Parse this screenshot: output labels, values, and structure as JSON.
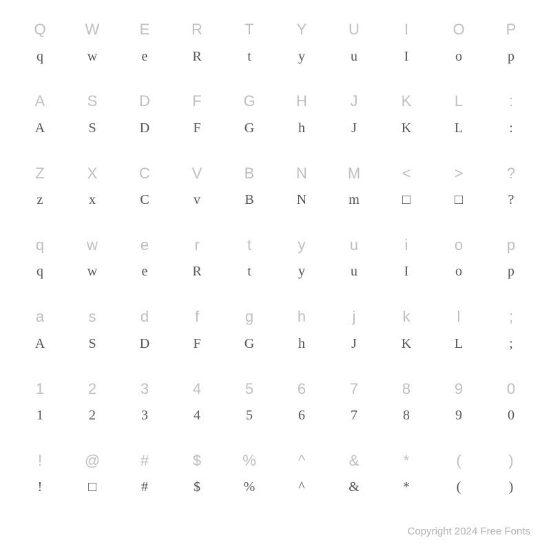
{
  "type": "font-specimen-grid",
  "background_color": "#ffffff",
  "label_color": "#bfbfbf",
  "glyph_color": "#555555",
  "label_fontsize": 22,
  "glyph_fontsize": 20,
  "grid": {
    "columns": 10,
    "rows": 7
  },
  "footer": "Copyright 2024 Free Fonts",
  "rows": [
    [
      {
        "label": "Q",
        "glyph": "q"
      },
      {
        "label": "W",
        "glyph": "w"
      },
      {
        "label": "E",
        "glyph": "e"
      },
      {
        "label": "R",
        "glyph": "R"
      },
      {
        "label": "T",
        "glyph": "t"
      },
      {
        "label": "Y",
        "glyph": "y"
      },
      {
        "label": "U",
        "glyph": "u"
      },
      {
        "label": "I",
        "glyph": "I"
      },
      {
        "label": "O",
        "glyph": "o"
      },
      {
        "label": "P",
        "glyph": "p"
      }
    ],
    [
      {
        "label": "A",
        "glyph": "A"
      },
      {
        "label": "S",
        "glyph": "S"
      },
      {
        "label": "D",
        "glyph": "D"
      },
      {
        "label": "F",
        "glyph": "F"
      },
      {
        "label": "G",
        "glyph": "G"
      },
      {
        "label": "H",
        "glyph": "h"
      },
      {
        "label": "J",
        "glyph": "J"
      },
      {
        "label": "K",
        "glyph": "K"
      },
      {
        "label": "L",
        "glyph": "L"
      },
      {
        "label": ":",
        "glyph": ":"
      }
    ],
    [
      {
        "label": "Z",
        "glyph": "z"
      },
      {
        "label": "X",
        "glyph": "x"
      },
      {
        "label": "C",
        "glyph": "C"
      },
      {
        "label": "V",
        "glyph": "v"
      },
      {
        "label": "B",
        "glyph": "B"
      },
      {
        "label": "N",
        "glyph": "N"
      },
      {
        "label": "M",
        "glyph": "m"
      },
      {
        "label": "<",
        "glyph": "□"
      },
      {
        "label": ">",
        "glyph": "□"
      },
      {
        "label": "?",
        "glyph": "?"
      }
    ],
    [
      {
        "label": "q",
        "glyph": "q"
      },
      {
        "label": "w",
        "glyph": "w"
      },
      {
        "label": "e",
        "glyph": "e"
      },
      {
        "label": "r",
        "glyph": "R"
      },
      {
        "label": "t",
        "glyph": "t"
      },
      {
        "label": "y",
        "glyph": "y"
      },
      {
        "label": "u",
        "glyph": "u"
      },
      {
        "label": "i",
        "glyph": "I"
      },
      {
        "label": "o",
        "glyph": "o"
      },
      {
        "label": "p",
        "glyph": "p"
      }
    ],
    [
      {
        "label": "a",
        "glyph": "A"
      },
      {
        "label": "s",
        "glyph": "S"
      },
      {
        "label": "d",
        "glyph": "D"
      },
      {
        "label": "f",
        "glyph": "F"
      },
      {
        "label": "g",
        "glyph": "G"
      },
      {
        "label": "h",
        "glyph": "h"
      },
      {
        "label": "j",
        "glyph": "J"
      },
      {
        "label": "k",
        "glyph": "K"
      },
      {
        "label": "l",
        "glyph": "L"
      },
      {
        "label": ";",
        "glyph": ";"
      }
    ],
    [
      {
        "label": "1",
        "glyph": "1"
      },
      {
        "label": "2",
        "glyph": "2"
      },
      {
        "label": "3",
        "glyph": "3"
      },
      {
        "label": "4",
        "glyph": "4"
      },
      {
        "label": "5",
        "glyph": "5"
      },
      {
        "label": "6",
        "glyph": "6"
      },
      {
        "label": "7",
        "glyph": "7"
      },
      {
        "label": "8",
        "glyph": "8"
      },
      {
        "label": "9",
        "glyph": "9"
      },
      {
        "label": "0",
        "glyph": "0"
      }
    ],
    [
      {
        "label": "!",
        "glyph": "!"
      },
      {
        "label": "@",
        "glyph": "□"
      },
      {
        "label": "#",
        "glyph": "#"
      },
      {
        "label": "$",
        "glyph": "$"
      },
      {
        "label": "%",
        "glyph": "%"
      },
      {
        "label": "^",
        "glyph": "^"
      },
      {
        "label": "&",
        "glyph": "&"
      },
      {
        "label": "*",
        "glyph": "*"
      },
      {
        "label": "(",
        "glyph": "("
      },
      {
        "label": ")",
        "glyph": ")"
      }
    ]
  ]
}
